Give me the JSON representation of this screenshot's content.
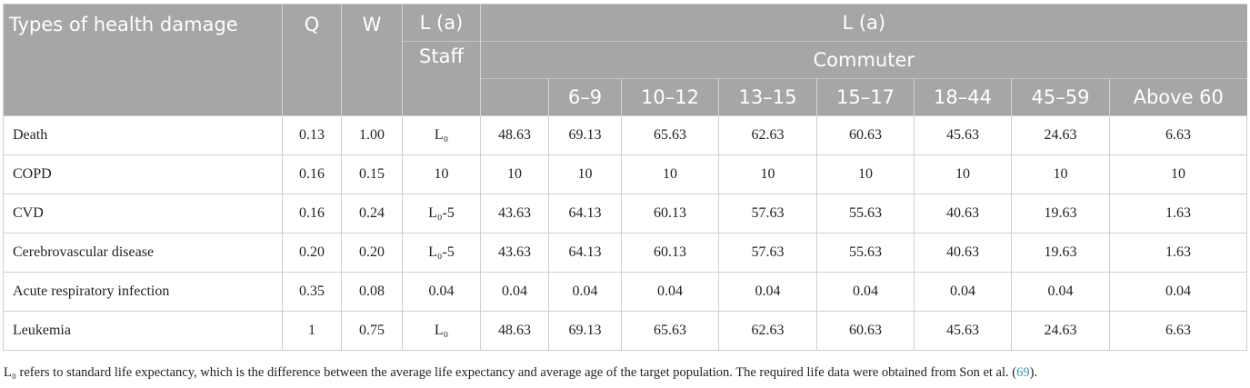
{
  "table": {
    "header": {
      "type_label": "Types of health damage",
      "q": "Q",
      "w": "W",
      "staff_top": "L (a)",
      "staff": "Staff",
      "group": "L (a)",
      "subgroup": "Commuter",
      "ages": [
        "6–9",
        "10–12",
        "13–15",
        "15–17",
        "18–44",
        "45–59",
        "Above 60"
      ]
    },
    "rows": [
      [
        "Death",
        "0.13",
        "1.00",
        "L₀",
        "48.63",
        "69.13",
        "65.63",
        "62.63",
        "60.63",
        "45.63",
        "24.63",
        "6.63"
      ],
      [
        "COPD",
        "0.16",
        "0.15",
        "10",
        "10",
        "10",
        "10",
        "10",
        "10",
        "10",
        "10",
        "10"
      ],
      [
        "CVD",
        "0.16",
        "0.24",
        "L₀-5",
        "43.63",
        "64.13",
        "60.13",
        "57.63",
        "55.63",
        "40.63",
        "19.63",
        "1.63"
      ],
      [
        "Cerebrovascular disease",
        "0.20",
        "0.20",
        "L₀-5",
        "43.63",
        "64.13",
        "60.13",
        "57.63",
        "55.63",
        "40.63",
        "19.63",
        "1.63"
      ],
      [
        "Acute respiratory infection",
        "0.35",
        "0.08",
        "0.04",
        "0.04",
        "0.04",
        "0.04",
        "0.04",
        "0.04",
        "0.04",
        "0.04",
        "0.04"
      ],
      [
        "Leukemia",
        "1",
        "0.75",
        "L₀",
        "48.63",
        "69.13",
        "65.63",
        "62.63",
        "60.63",
        "45.63",
        "24.63",
        "6.63"
      ]
    ]
  },
  "footnote": {
    "text": "L₀ refers to standard life expectancy, which is the difference between the average life expectancy and average age of the target population. The required life data were obtained from Son et al. (",
    "ref": "69",
    "end": ")."
  }
}
